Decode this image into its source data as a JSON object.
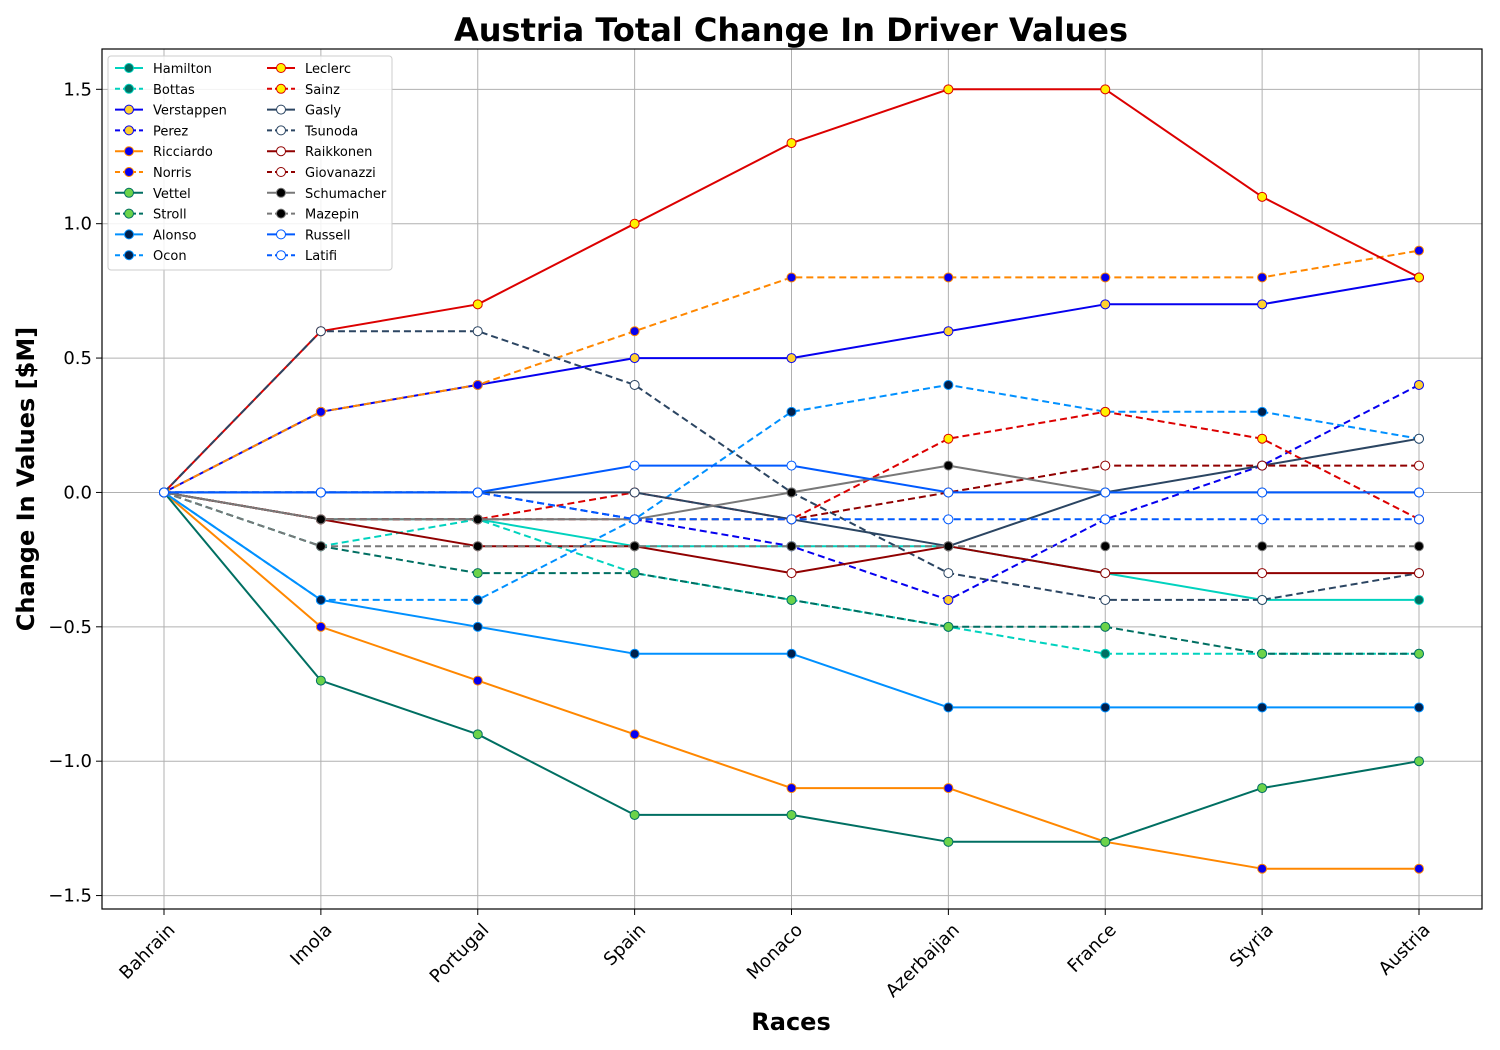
{
  "chart_data": {
    "type": "line",
    "title": "Austria Total Change In Driver Values",
    "xlabel": "Races",
    "ylabel": "Change In Values [$M]",
    "categories": [
      "Bahrain",
      "Imola",
      "Portugal",
      "Spain",
      "Monaco",
      "Azerbaijan",
      "France",
      "Styria",
      "Austria"
    ],
    "ylim": [
      -1.55,
      1.65
    ],
    "yticks": [
      -1.5,
      -1.0,
      -0.5,
      0.0,
      0.5,
      1.0,
      1.5
    ],
    "ytick_labels": [
      "−1.5",
      "−1.0",
      "−0.5",
      "0.0",
      "0.5",
      "1.0",
      "1.5"
    ],
    "grid": true,
    "legend_position": "upper-left",
    "series": [
      {
        "name": "Hamilton",
        "color": "#00d2be",
        "dash": "solid",
        "marker_face": "#006f62",
        "values": [
          0,
          -0.1,
          -0.1,
          -0.2,
          -0.2,
          -0.2,
          -0.3,
          -0.4,
          -0.4
        ]
      },
      {
        "name": "Bottas",
        "color": "#00d2be",
        "dash": "dashed",
        "marker_face": "#006f62",
        "values": [
          0,
          -0.2,
          -0.1,
          -0.3,
          -0.4,
          -0.5,
          -0.6,
          -0.6,
          -0.6
        ]
      },
      {
        "name": "Verstappen",
        "color": "#0600ef",
        "dash": "solid",
        "marker_face": "#ffd12e",
        "values": [
          0,
          0.3,
          0.4,
          0.5,
          0.5,
          0.6,
          0.7,
          0.7,
          0.8
        ]
      },
      {
        "name": "Perez",
        "color": "#0600ef",
        "dash": "dashed",
        "marker_face": "#ffd12e",
        "values": [
          0,
          0,
          0,
          -0.1,
          -0.2,
          -0.4,
          -0.1,
          0.1,
          0.4
        ]
      },
      {
        "name": "Ricciardo",
        "color": "#ff8700",
        "dash": "solid",
        "marker_face": "#0600ef",
        "values": [
          0,
          -0.5,
          -0.7,
          -0.9,
          -1.1,
          -1.1,
          -1.3,
          -1.4,
          -1.4
        ]
      },
      {
        "name": "Norris",
        "color": "#ff8700",
        "dash": "dashed",
        "marker_face": "#0600ef",
        "values": [
          0,
          0.3,
          0.4,
          0.6,
          0.8,
          0.8,
          0.8,
          0.8,
          0.9
        ]
      },
      {
        "name": "Vettel",
        "color": "#006f62",
        "dash": "solid",
        "marker_face": "#6cd34a",
        "values": [
          0,
          -0.7,
          -0.9,
          -1.2,
          -1.2,
          -1.3,
          -1.3,
          -1.1,
          -1.0
        ]
      },
      {
        "name": "Stroll",
        "color": "#006f62",
        "dash": "dashed",
        "marker_face": "#6cd34a",
        "values": [
          0,
          -0.2,
          -0.3,
          -0.3,
          -0.4,
          -0.5,
          -0.5,
          -0.6,
          -0.6
        ]
      },
      {
        "name": "Alonso",
        "color": "#0090ff",
        "dash": "solid",
        "marker_face": "#00204d",
        "values": [
          0,
          -0.4,
          -0.5,
          -0.6,
          -0.6,
          -0.8,
          -0.8,
          -0.8,
          -0.8
        ]
      },
      {
        "name": "Ocon",
        "color": "#0090ff",
        "dash": "dashed",
        "marker_face": "#00204d",
        "values": [
          0,
          -0.4,
          -0.4,
          -0.1,
          0.3,
          0.4,
          0.3,
          0.3,
          0.2
        ]
      },
      {
        "name": "Leclerc",
        "color": "#dc0000",
        "dash": "solid",
        "marker_face": "#fff200",
        "values": [
          0,
          0.6,
          0.7,
          1.0,
          1.3,
          1.5,
          1.5,
          1.1,
          0.8
        ]
      },
      {
        "name": "Sainz",
        "color": "#dc0000",
        "dash": "dashed",
        "marker_face": "#fff200",
        "values": [
          0,
          -0.1,
          -0.1,
          0,
          -0.1,
          0.2,
          0.3,
          0.2,
          -0.1
        ]
      },
      {
        "name": "Gasly",
        "color": "#2b4562",
        "dash": "solid",
        "marker_face": "#ffffff",
        "values": [
          0,
          0,
          0,
          0,
          -0.1,
          -0.2,
          0,
          0.1,
          0.2
        ]
      },
      {
        "name": "Tsunoda",
        "color": "#2b4562",
        "dash": "dashed",
        "marker_face": "#ffffff",
        "values": [
          0,
          0.6,
          0.6,
          0.4,
          0,
          -0.3,
          -0.4,
          -0.4,
          -0.3
        ]
      },
      {
        "name": "Raikkonen",
        "color": "#900000",
        "dash": "solid",
        "marker_face": "#ffffff",
        "values": [
          0,
          -0.1,
          -0.2,
          -0.2,
          -0.3,
          -0.2,
          -0.3,
          -0.3,
          -0.3
        ]
      },
      {
        "name": "Giovanazzi",
        "color": "#900000",
        "dash": "dashed",
        "marker_face": "#ffffff",
        "values": [
          0,
          -0.1,
          -0.1,
          -0.1,
          -0.1,
          0,
          0.1,
          0.1,
          0.1
        ]
      },
      {
        "name": "Schumacher",
        "color": "#787878",
        "dash": "solid",
        "marker_face": "#000000",
        "values": [
          0,
          -0.1,
          -0.1,
          -0.1,
          0,
          0.1,
          0,
          0,
          0
        ]
      },
      {
        "name": "Mazepin",
        "color": "#787878",
        "dash": "dashed",
        "marker_face": "#000000",
        "values": [
          0,
          -0.2,
          -0.2,
          -0.2,
          -0.2,
          -0.2,
          -0.2,
          -0.2,
          -0.2
        ]
      },
      {
        "name": "Russell",
        "color": "#005aff",
        "dash": "solid",
        "marker_face": "#ffffff",
        "values": [
          0,
          0,
          0,
          0.1,
          0.1,
          0,
          0,
          0,
          0
        ]
      },
      {
        "name": "Latifi",
        "color": "#005aff",
        "dash": "dashed",
        "marker_face": "#ffffff",
        "values": [
          0,
          0,
          0,
          -0.1,
          -0.1,
          -0.1,
          -0.1,
          -0.1,
          -0.1
        ]
      }
    ]
  }
}
